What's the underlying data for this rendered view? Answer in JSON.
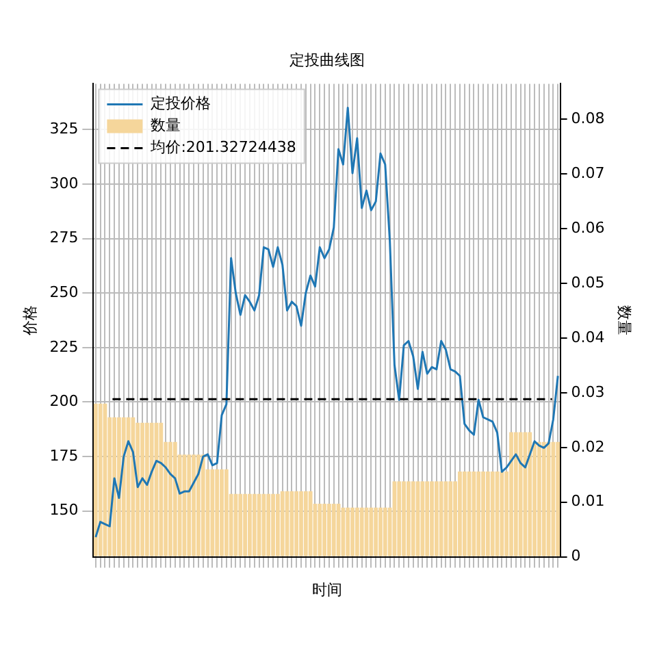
{
  "chart_data": {
    "type": "line",
    "title": "定投曲线图",
    "xlabel": "时间",
    "ylabel": "价格",
    "y2label": "数量",
    "categories": [
      null,
      null,
      null,
      null,
      null,
      null,
      null,
      null,
      null,
      null,
      null,
      null,
      null,
      null,
      null,
      null,
      null,
      null,
      null,
      null,
      null,
      null,
      null,
      null,
      null,
      null,
      null,
      null,
      null,
      null,
      null,
      null,
      null,
      null,
      null,
      null,
      null,
      null,
      null,
      null,
      null,
      null,
      null,
      null,
      null,
      null,
      null,
      null,
      null,
      null,
      null,
      null,
      null,
      null,
      null,
      null,
      null,
      null,
      null,
      null,
      null,
      null,
      null,
      null,
      null,
      null,
      null,
      null,
      null,
      null,
      null,
      null,
      null,
      null,
      null,
      null,
      null,
      null,
      null,
      null,
      null,
      null,
      null,
      null,
      null,
      null,
      null,
      null,
      null,
      null,
      null,
      null,
      null,
      null,
      null,
      null,
      null,
      null,
      null,
      null
    ],
    "series": [
      {
        "name": "定投价格",
        "color": "#1f77b4",
        "values": [
          138,
          145,
          144,
          143,
          165,
          156,
          175,
          182,
          177,
          161,
          165,
          162,
          168,
          173,
          172,
          170,
          167,
          165,
          158,
          159,
          159,
          163,
          167,
          175,
          176,
          171,
          172,
          194,
          199,
          266,
          250,
          240,
          249,
          246,
          242,
          249,
          271,
          270,
          262,
          271,
          263,
          242,
          246,
          244,
          235,
          250,
          258,
          253,
          271,
          266,
          270,
          280,
          316,
          309,
          335,
          305,
          321,
          289,
          297,
          288,
          292,
          314,
          309,
          274,
          217,
          201,
          226,
          228,
          221,
          206,
          223,
          213,
          216,
          215,
          228,
          224,
          215,
          214,
          212,
          190,
          187,
          185,
          201,
          193,
          192,
          191,
          186,
          168,
          170,
          173,
          176,
          172,
          170,
          176,
          182,
          180,
          179,
          181,
          192,
          212
        ]
      },
      {
        "name": "数量",
        "type": "bar",
        "axis": "y2",
        "color": "#f5d69b",
        "values": [
          0.028,
          0.028,
          0.028,
          0.0255,
          0.0255,
          0.0255,
          0.0255,
          0.0255,
          0.0255,
          0.0245,
          0.0245,
          0.0245,
          0.0245,
          0.0245,
          0.0245,
          0.021,
          0.021,
          0.021,
          0.0187,
          0.0187,
          0.0187,
          0.0187,
          0.0187,
          0.0187,
          0.016,
          0.016,
          0.016,
          0.016,
          0.016,
          0.0115,
          0.0115,
          0.0115,
          0.0115,
          0.0115,
          0.0115,
          0.0115,
          0.0115,
          0.0115,
          0.0115,
          0.0115,
          0.012,
          0.012,
          0.012,
          0.012,
          0.012,
          0.012,
          0.012,
          0.0097,
          0.0097,
          0.0097,
          0.0097,
          0.0097,
          0.0097,
          0.009,
          0.009,
          0.009,
          0.009,
          0.009,
          0.009,
          0.009,
          0.009,
          0.009,
          0.009,
          0.009,
          0.0138,
          0.0138,
          0.0138,
          0.0138,
          0.0138,
          0.0138,
          0.0138,
          0.0138,
          0.0138,
          0.0138,
          0.0138,
          0.0138,
          0.0138,
          0.0138,
          0.0156,
          0.0156,
          0.0156,
          0.0156,
          0.0156,
          0.0156,
          0.0156,
          0.0156,
          0.0156,
          0.0156,
          0.0156,
          0.0228,
          0.0228,
          0.0228,
          0.0228,
          0.0228,
          0.021,
          0.021,
          0.021,
          0.021,
          0.021,
          0.021
        ]
      }
    ],
    "ref_lines": [
      {
        "axis": "y",
        "value": 201.32724438,
        "label": "均价:201.32724438",
        "color": "#000000",
        "line_style": "dashed"
      }
    ],
    "ylim": [
      129,
      346
    ],
    "yticks": [
      150,
      175,
      200,
      225,
      250,
      275,
      300,
      325
    ],
    "y2lim": [
      0,
      0.0865
    ],
    "y2ticks": [
      0,
      0.01,
      0.02,
      0.03,
      0.04,
      0.05,
      0.06,
      0.07,
      0.08
    ],
    "grid": true,
    "legend": "top left",
    "marker": "none",
    "line_style": "solid"
  }
}
